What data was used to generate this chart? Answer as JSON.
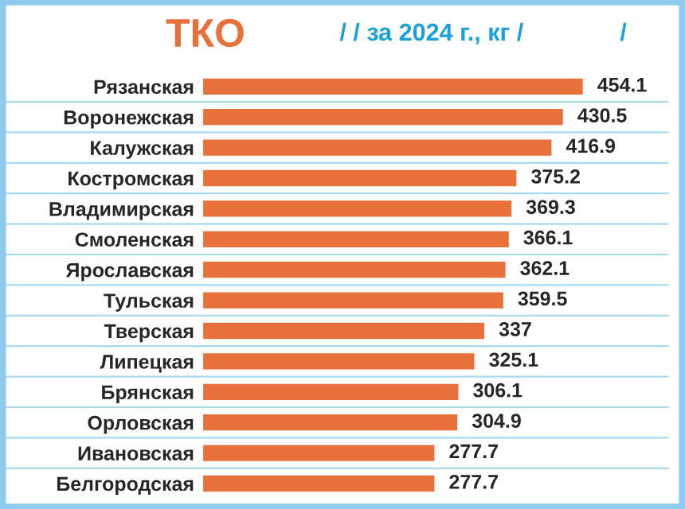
{
  "chart_data": {
    "type": "bar",
    "orientation": "horizontal",
    "title": "ТКО",
    "subtitle": "/ / за 2024 г., кг /",
    "annotations": [
      "/"
    ],
    "categories": [
      "Рязанская",
      "Воронежская",
      "Калужская",
      "Костромская",
      "Владимирская",
      "Смоленская",
      "Ярославская",
      "Тульская",
      "Тверская",
      "Липецкая",
      "Брянская",
      "Орловская",
      "Ивановская",
      "Белгородская"
    ],
    "values": [
      454.1,
      430.5,
      416.9,
      375.2,
      369.3,
      366.1,
      362.1,
      359.5,
      337,
      325.1,
      306.1,
      304.9,
      277.7,
      277.7
    ],
    "color": "#e8703a",
    "data_labels": true,
    "grid": false,
    "legend": false,
    "tick_labels": "y"
  }
}
